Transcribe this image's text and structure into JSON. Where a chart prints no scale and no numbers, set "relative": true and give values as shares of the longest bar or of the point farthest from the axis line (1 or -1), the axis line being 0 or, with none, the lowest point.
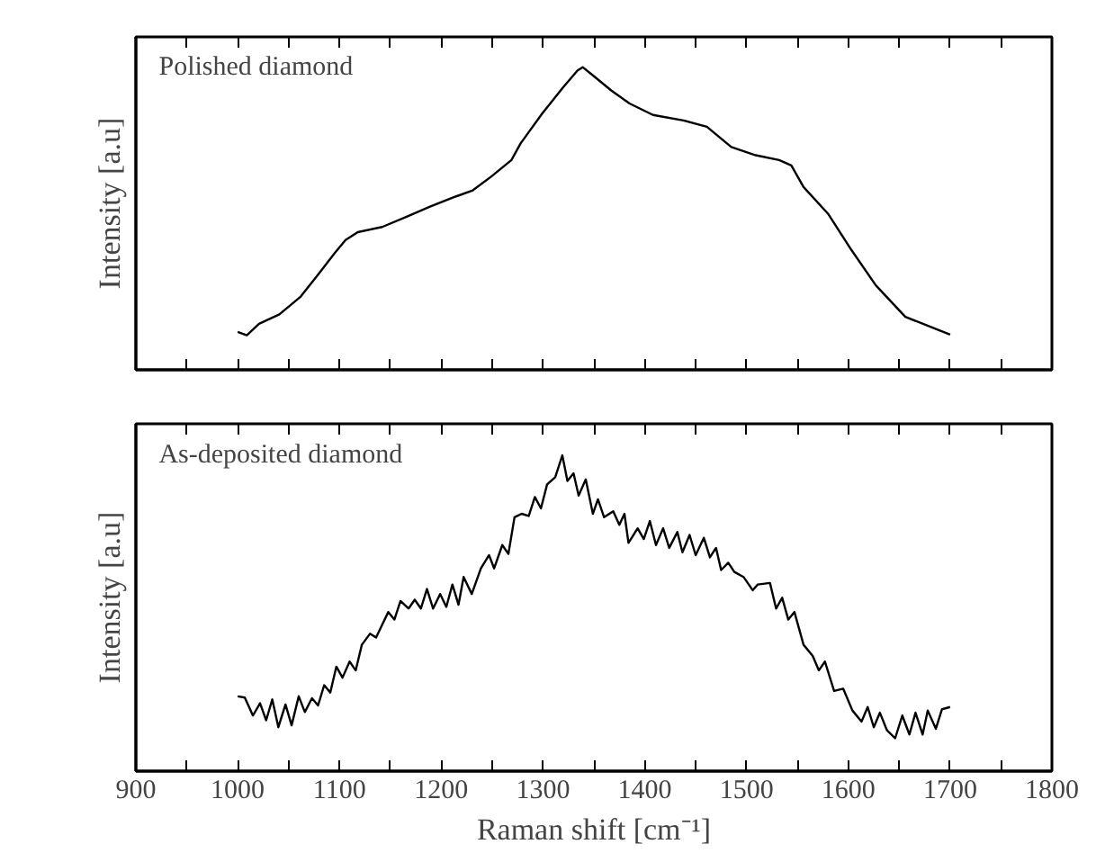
{
  "chart_data": [
    {
      "type": "line",
      "relative": true,
      "ylabel": "Intensity [a.u]",
      "annotations": [
        "Polished diamond"
      ],
      "xlim": [
        900,
        1800
      ],
      "tick_labels": false,
      "grid": false,
      "marker": "none",
      "line_style": "solid",
      "xticks": [
        900,
        {
          "value": 950,
          "label": null
        },
        1000,
        {
          "value": 1050,
          "label": null
        },
        1100,
        {
          "value": 1150,
          "label": null
        },
        1200,
        {
          "value": 1250,
          "label": null
        },
        1300,
        {
          "value": 1350,
          "label": null
        },
        1400,
        {
          "value": 1450,
          "label": null
        },
        1500,
        {
          "value": 1550,
          "label": null
        },
        1600,
        {
          "value": 1650,
          "label": null
        },
        1700,
        {
          "value": 1750,
          "label": null
        },
        1800
      ],
      "x": [
        1000,
        1009,
        1021,
        1041,
        1062,
        1080,
        1095,
        1106,
        1118,
        1142,
        1166,
        1189,
        1213,
        1231,
        1249,
        1269,
        1278,
        1299,
        1320,
        1334,
        1339,
        1349,
        1367,
        1385,
        1408,
        1438,
        1461,
        1485,
        1509,
        1532,
        1544,
        1556,
        1580,
        1603,
        1627,
        1656,
        1680,
        1700
      ],
      "series": [
        {
          "color": "#000000",
          "values": [
            0.125,
            0.114,
            0.152,
            0.183,
            0.242,
            0.319,
            0.384,
            0.429,
            0.455,
            0.472,
            0.506,
            0.539,
            0.571,
            0.593,
            0.638,
            0.693,
            0.748,
            0.846,
            0.934,
            0.989,
            1,
            0.973,
            0.923,
            0.88,
            0.842,
            0.824,
            0.803,
            0.736,
            0.709,
            0.693,
            0.675,
            0.604,
            0.516,
            0.396,
            0.279,
            0.175,
            0.143,
            0.116
          ]
        }
      ]
    },
    {
      "type": "line",
      "relative": true,
      "ylabel": "Intensity [a.u]",
      "xlabel": "Raman shift [cm⁻¹]",
      "annotations": [
        "As-deposited diamond"
      ],
      "xlim": [
        900,
        1800
      ],
      "tick_labels": "x",
      "grid": false,
      "marker": "none",
      "line_style": "solid",
      "xticks": [
        900,
        {
          "value": 950,
          "label": null
        },
        1000,
        {
          "value": 1050,
          "label": null
        },
        1100,
        {
          "value": 1150,
          "label": null
        },
        1200,
        {
          "value": 1250,
          "label": null
        },
        1300,
        {
          "value": 1350,
          "label": null
        },
        1400,
        {
          "value": 1450,
          "label": null
        },
        1500,
        {
          "value": 1550,
          "label": null
        },
        1600,
        {
          "value": 1650,
          "label": null
        },
        1700,
        {
          "value": 1750,
          "label": null
        },
        1800
      ],
      "x": [
        1000,
        1007,
        1015,
        1022,
        1028,
        1034,
        1040,
        1047,
        1053,
        1060,
        1066,
        1073,
        1079,
        1085,
        1091,
        1097,
        1103,
        1110,
        1116,
        1122,
        1130,
        1136,
        1148,
        1154,
        1160,
        1168,
        1174,
        1180,
        1186,
        1192,
        1199,
        1205,
        1211,
        1217,
        1222,
        1230,
        1239,
        1247,
        1252,
        1260,
        1266,
        1272,
        1279,
        1286,
        1292,
        1298,
        1304,
        1312,
        1319,
        1324,
        1330,
        1335,
        1342,
        1349,
        1354,
        1360,
        1369,
        1375,
        1380,
        1384,
        1393,
        1399,
        1405,
        1411,
        1418,
        1424,
        1432,
        1437,
        1444,
        1450,
        1458,
        1464,
        1470,
        1475,
        1482,
        1488,
        1497,
        1506,
        1511,
        1523,
        1529,
        1535,
        1541,
        1547,
        1556,
        1565,
        1571,
        1577,
        1586,
        1595,
        1604,
        1613,
        1619,
        1625,
        1631,
        1638,
        1646,
        1653,
        1660,
        1666,
        1673,
        1678,
        1686,
        1692,
        1700
      ],
      "series": [
        {
          "color": "#000000",
          "values": [
            0.237,
            0.233,
            0.176,
            0.215,
            0.161,
            0.227,
            0.139,
            0.211,
            0.145,
            0.237,
            0.187,
            0.231,
            0.208,
            0.272,
            0.249,
            0.331,
            0.296,
            0.347,
            0.319,
            0.4,
            0.435,
            0.423,
            0.504,
            0.48,
            0.539,
            0.515,
            0.543,
            0.515,
            0.577,
            0.515,
            0.561,
            0.52,
            0.591,
            0.527,
            0.615,
            0.561,
            0.642,
            0.684,
            0.642,
            0.716,
            0.688,
            0.804,
            0.815,
            0.808,
            0.868,
            0.832,
            0.908,
            0.931,
            1,
            0.919,
            0.943,
            0.873,
            0.924,
            0.815,
            0.861,
            0.804,
            0.823,
            0.78,
            0.815,
            0.723,
            0.769,
            0.735,
            0.792,
            0.716,
            0.769,
            0.707,
            0.757,
            0.693,
            0.748,
            0.684,
            0.739,
            0.677,
            0.707,
            0.637,
            0.66,
            0.631,
            0.615,
            0.573,
            0.591,
            0.596,
            0.515,
            0.549,
            0.48,
            0.504,
            0.4,
            0.365,
            0.319,
            0.347,
            0.254,
            0.261,
            0.192,
            0.157,
            0.203,
            0.139,
            0.185,
            0.129,
            0.104,
            0.176,
            0.116,
            0.185,
            0.116,
            0.192,
            0.134,
            0.196,
            0.203
          ]
        }
      ]
    }
  ]
}
